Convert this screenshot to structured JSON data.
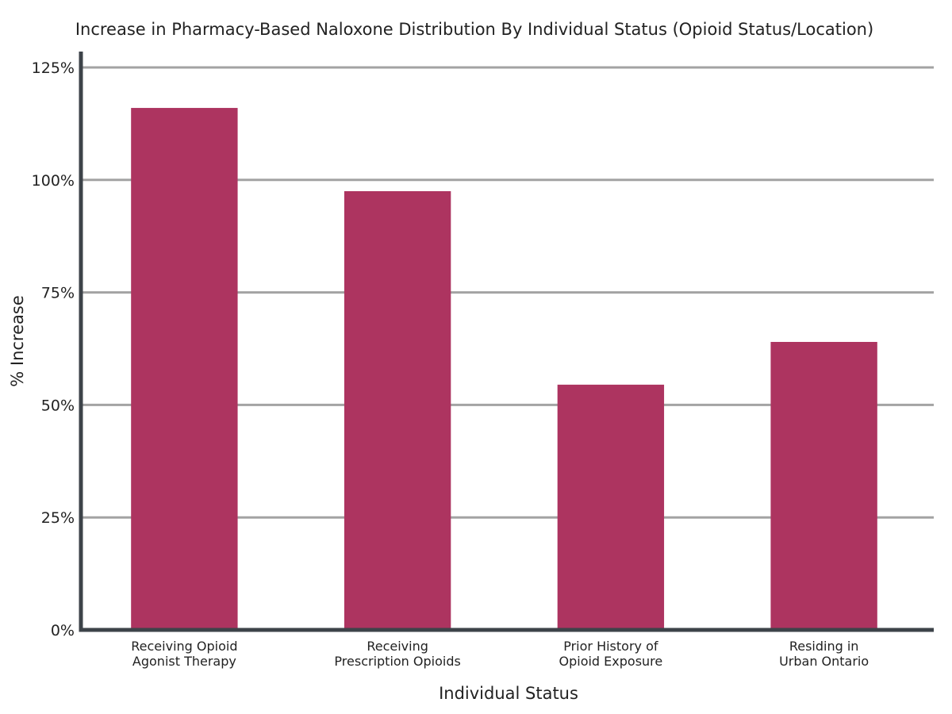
{
  "chart_data": {
    "type": "bar",
    "title": "Increase in Pharmacy-Based Naloxone Distribution By Individual Status (Opioid Status/Location)",
    "xlabel": "Individual Status",
    "ylabel": "% Increase",
    "categories": [
      [
        "Receiving Opioid",
        "Agonist Therapy"
      ],
      [
        "Receiving",
        "Prescription Opioids"
      ],
      [
        "Prior History of",
        "Opioid Exposure"
      ],
      [
        "Residing in",
        "Urban Ontario"
      ]
    ],
    "values": [
      116,
      97.5,
      54.5,
      64
    ],
    "ylim": [
      0,
      125
    ],
    "yticks": [
      0,
      25,
      50,
      75,
      100,
      125
    ],
    "ytick_labels": [
      "0%",
      "25%",
      "50%",
      "75%",
      "100%",
      "125%"
    ],
    "grid": true,
    "bar_color": "#ad3460",
    "grid_color": "#a3a3a3",
    "axis_color": "#3d4349"
  }
}
